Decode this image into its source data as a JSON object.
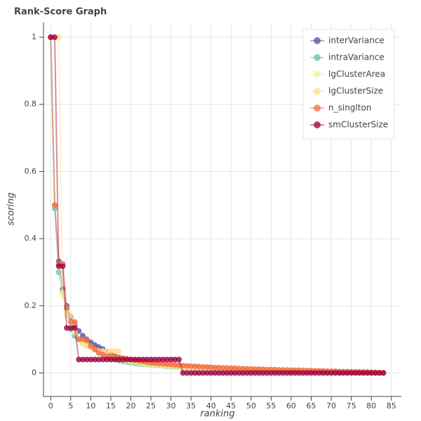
{
  "chart_data": {
    "type": "line",
    "title": "Rank-Score Graph",
    "x_label": "ranking",
    "y_label": "scoring",
    "x": [
      0,
      1,
      2,
      3,
      4,
      5,
      6,
      7,
      8,
      9,
      10,
      11,
      12,
      13,
      14,
      15,
      16,
      17,
      18,
      19,
      20,
      21,
      22,
      23,
      24,
      25,
      26,
      27,
      28,
      29,
      30,
      31,
      32,
      33,
      34,
      35,
      36,
      37,
      38,
      39,
      40,
      41,
      42,
      43,
      44,
      45,
      46,
      47,
      48,
      49,
      50,
      51,
      52,
      53,
      54,
      55,
      56,
      57,
      58,
      59,
      60,
      61,
      62,
      63,
      64,
      65,
      66,
      67,
      68,
      69,
      70,
      71,
      72,
      73,
      74,
      75,
      76,
      77,
      78,
      79,
      80,
      81,
      82,
      83
    ],
    "series": [
      {
        "name": "interVariance",
        "color": "#5e4fa2",
        "values": [
          1,
          0.5,
          0.333,
          0.25,
          0.2,
          0.167,
          0.143,
          0.125,
          0.111,
          0.1,
          0.091,
          0.083,
          0.077,
          0.071,
          0.062,
          0.055,
          0.05,
          0.046,
          0.043,
          0.04,
          0.037,
          0.035,
          0.033,
          0.031,
          0.029,
          0.028,
          0.026,
          0.025,
          0.024,
          0.023,
          0.022,
          0.021,
          0.02,
          0.019,
          0.018,
          0.018,
          0.017,
          0.016,
          0.016,
          0.015,
          0.015,
          0.014,
          0.014,
          0.013,
          0.013,
          0.012,
          0.012,
          0.011,
          0.011,
          0.011,
          0.01,
          0.01,
          0.01,
          0.009,
          0.009,
          0.009,
          0.008,
          0.008,
          0.008,
          0.008,
          0.007,
          0.007,
          0.007,
          0.007,
          0.006,
          0.006,
          0.006,
          0.006,
          0.005,
          0.005,
          0.005,
          0.005,
          0.004,
          0.004,
          0.004,
          0.004,
          0.003,
          0.003,
          0.003,
          0.003,
          0.002,
          0.002,
          0.001,
          0.001
        ]
      },
      {
        "name": "intraVariance",
        "color": "#66c2a5",
        "values": [
          1,
          0.49,
          0.3,
          0.24,
          0.19,
          0.13,
          0.11,
          0.1,
          0.09,
          0.085,
          0.08,
          0.07,
          0.06,
          0.055,
          0.05,
          0.045,
          0.04,
          0.037,
          0.035,
          0.033,
          0.031,
          0.029,
          0.027,
          0.026,
          0.025,
          0.024,
          0.023,
          0.022,
          0.021,
          0.02,
          0.019,
          0.018,
          0.017,
          0.016,
          0.015,
          0.015,
          0.014,
          0.013,
          0.013,
          0.012,
          0.012,
          0.011,
          0.011,
          0.01,
          0.01,
          0.01,
          0.009,
          0.009,
          0.009,
          0.008,
          0.008,
          0.008,
          0.007,
          0.007,
          0.007,
          0.007,
          0.006,
          0.006,
          0.006,
          0.006,
          0.005,
          0.005,
          0.005,
          0.005,
          0.004,
          0.004,
          0.004,
          0.004,
          0.003,
          0.003,
          0.003,
          0.003,
          0.002,
          0.002,
          0.002,
          0.002,
          0.002,
          0.001,
          0.001,
          0.001,
          0.001,
          0.001,
          0,
          0
        ]
      },
      {
        "name": "lgClusterArea",
        "color": "#e6f598",
        "values": [
          1,
          0.5,
          0.32,
          0.23,
          0.18,
          0.15,
          0.12,
          0.1,
          0.085,
          0.08,
          0.075,
          0.068,
          0.062,
          0.057,
          0.052,
          0.048,
          0.045,
          0.042,
          0.039,
          0.036,
          0.034,
          0.032,
          0.03,
          0.028,
          0.026,
          0.025,
          0.024,
          0.023,
          0.022,
          0.021,
          0.02,
          0.019,
          0.018,
          0.017,
          0.016,
          0.016,
          0.015,
          0.014,
          0.014,
          0.013,
          0.013,
          0.012,
          0.012,
          0.011,
          0.011,
          0.01,
          0.01,
          0.01,
          0.009,
          0.009,
          0.009,
          0.008,
          0.008,
          0.008,
          0.007,
          0.007,
          0.007,
          0.007,
          0.006,
          0.006,
          0.006,
          0.005,
          0.005,
          0.005,
          0.005,
          0.004,
          0.004,
          0.004,
          0.004,
          0.003,
          0.003,
          0.003,
          0.003,
          0.002,
          0.002,
          0.002,
          0.002,
          0.001,
          0.001,
          0.001,
          0.001,
          0.001,
          0,
          0
        ]
      },
      {
        "name": "lgClusterSize",
        "color": "#fee08b",
        "values": [
          1,
          1,
          1,
          0.24,
          0.17,
          0.17,
          0.15,
          0.1,
          0.09,
          0.08,
          0.075,
          0.07,
          0.065,
          0.065,
          0.065,
          0.065,
          0.065,
          0.065,
          0.04,
          0.038,
          0.036,
          0.034,
          0.032,
          0.03,
          0.029,
          0.028,
          0.027,
          0.026,
          0.025,
          0.024,
          0.023,
          0.022,
          0.021,
          0.02,
          0.019,
          0.019,
          0.018,
          0.017,
          0.017,
          0.016,
          0.016,
          0.015,
          0.015,
          0.014,
          0.014,
          0.013,
          0.013,
          0.012,
          0.012,
          0.012,
          0.011,
          0.011,
          0.011,
          0.01,
          0.01,
          0.01,
          0.009,
          0.009,
          0.009,
          0.008,
          0.008,
          0.008,
          0.008,
          0.007,
          0.007,
          0.007,
          0.006,
          0.006,
          0.006,
          0.006,
          0.005,
          0.005,
          0.005,
          0.004,
          0.004,
          0.004,
          0.003,
          0.003,
          0.003,
          0.002,
          0.002,
          0.002,
          0.001,
          0.001
        ]
      },
      {
        "name": "n_singlton",
        "color": "#f46d43",
        "values": [
          1,
          0.5,
          0.325,
          0.325,
          0.195,
          0.152,
          0.152,
          0.1,
          0.1,
          0.098,
          0.08,
          0.07,
          0.06,
          0.055,
          0.05,
          0.05,
          0.048,
          0.046,
          0.044,
          0.042,
          0.04,
          0.038,
          0.036,
          0.034,
          0.032,
          0.03,
          0.029,
          0.028,
          0.027,
          0.026,
          0.025,
          0.024,
          0.023,
          0.022,
          0.021,
          0.02,
          0.02,
          0.019,
          0.018,
          0.018,
          0.017,
          0.016,
          0.016,
          0.015,
          0.015,
          0.014,
          0.014,
          0.013,
          0.013,
          0.012,
          0.012,
          0.011,
          0.011,
          0.011,
          0.01,
          0.01,
          0.01,
          0.009,
          0.009,
          0.009,
          0.008,
          0.008,
          0.008,
          0.007,
          0.007,
          0.007,
          0.006,
          0.006,
          0.006,
          0.005,
          0.005,
          0.005,
          0.004,
          0.004,
          0.004,
          0.003,
          0.003,
          0.003,
          0.002,
          0.002,
          0.002,
          0.001,
          0.001,
          0
        ]
      },
      {
        "name": "smClusterSize",
        "color": "#9e0142",
        "values": [
          1,
          1,
          0.318,
          0.318,
          0.134,
          0.134,
          0.134,
          0.04,
          0.04,
          0.04,
          0.04,
          0.04,
          0.04,
          0.04,
          0.04,
          0.04,
          0.04,
          0.04,
          0.04,
          0.04,
          0.04,
          0.04,
          0.04,
          0.04,
          0.04,
          0.04,
          0.04,
          0.04,
          0.04,
          0.04,
          0.04,
          0.04,
          0.04,
          0,
          0,
          0,
          0,
          0,
          0,
          0,
          0,
          0,
          0,
          0,
          0,
          0,
          0,
          0,
          0,
          0,
          0,
          0,
          0,
          0,
          0,
          0,
          0,
          0,
          0,
          0,
          0,
          0,
          0,
          0,
          0,
          0,
          0,
          0,
          0,
          0,
          0,
          0,
          0,
          0,
          0,
          0,
          0,
          0,
          0,
          0,
          0,
          0,
          0,
          0
        ]
      }
    ],
    "xlim": [
      -1.8,
      87.5
    ],
    "ylim": [
      -0.07,
      1.044
    ],
    "xticks": [
      0,
      5,
      10,
      15,
      20,
      25,
      30,
      35,
      40,
      45,
      50,
      55,
      60,
      65,
      70,
      75,
      80,
      85
    ],
    "yticks": [
      0,
      0.2,
      0.4,
      0.6,
      0.8,
      1
    ],
    "grid": true,
    "legend": "top-right"
  }
}
